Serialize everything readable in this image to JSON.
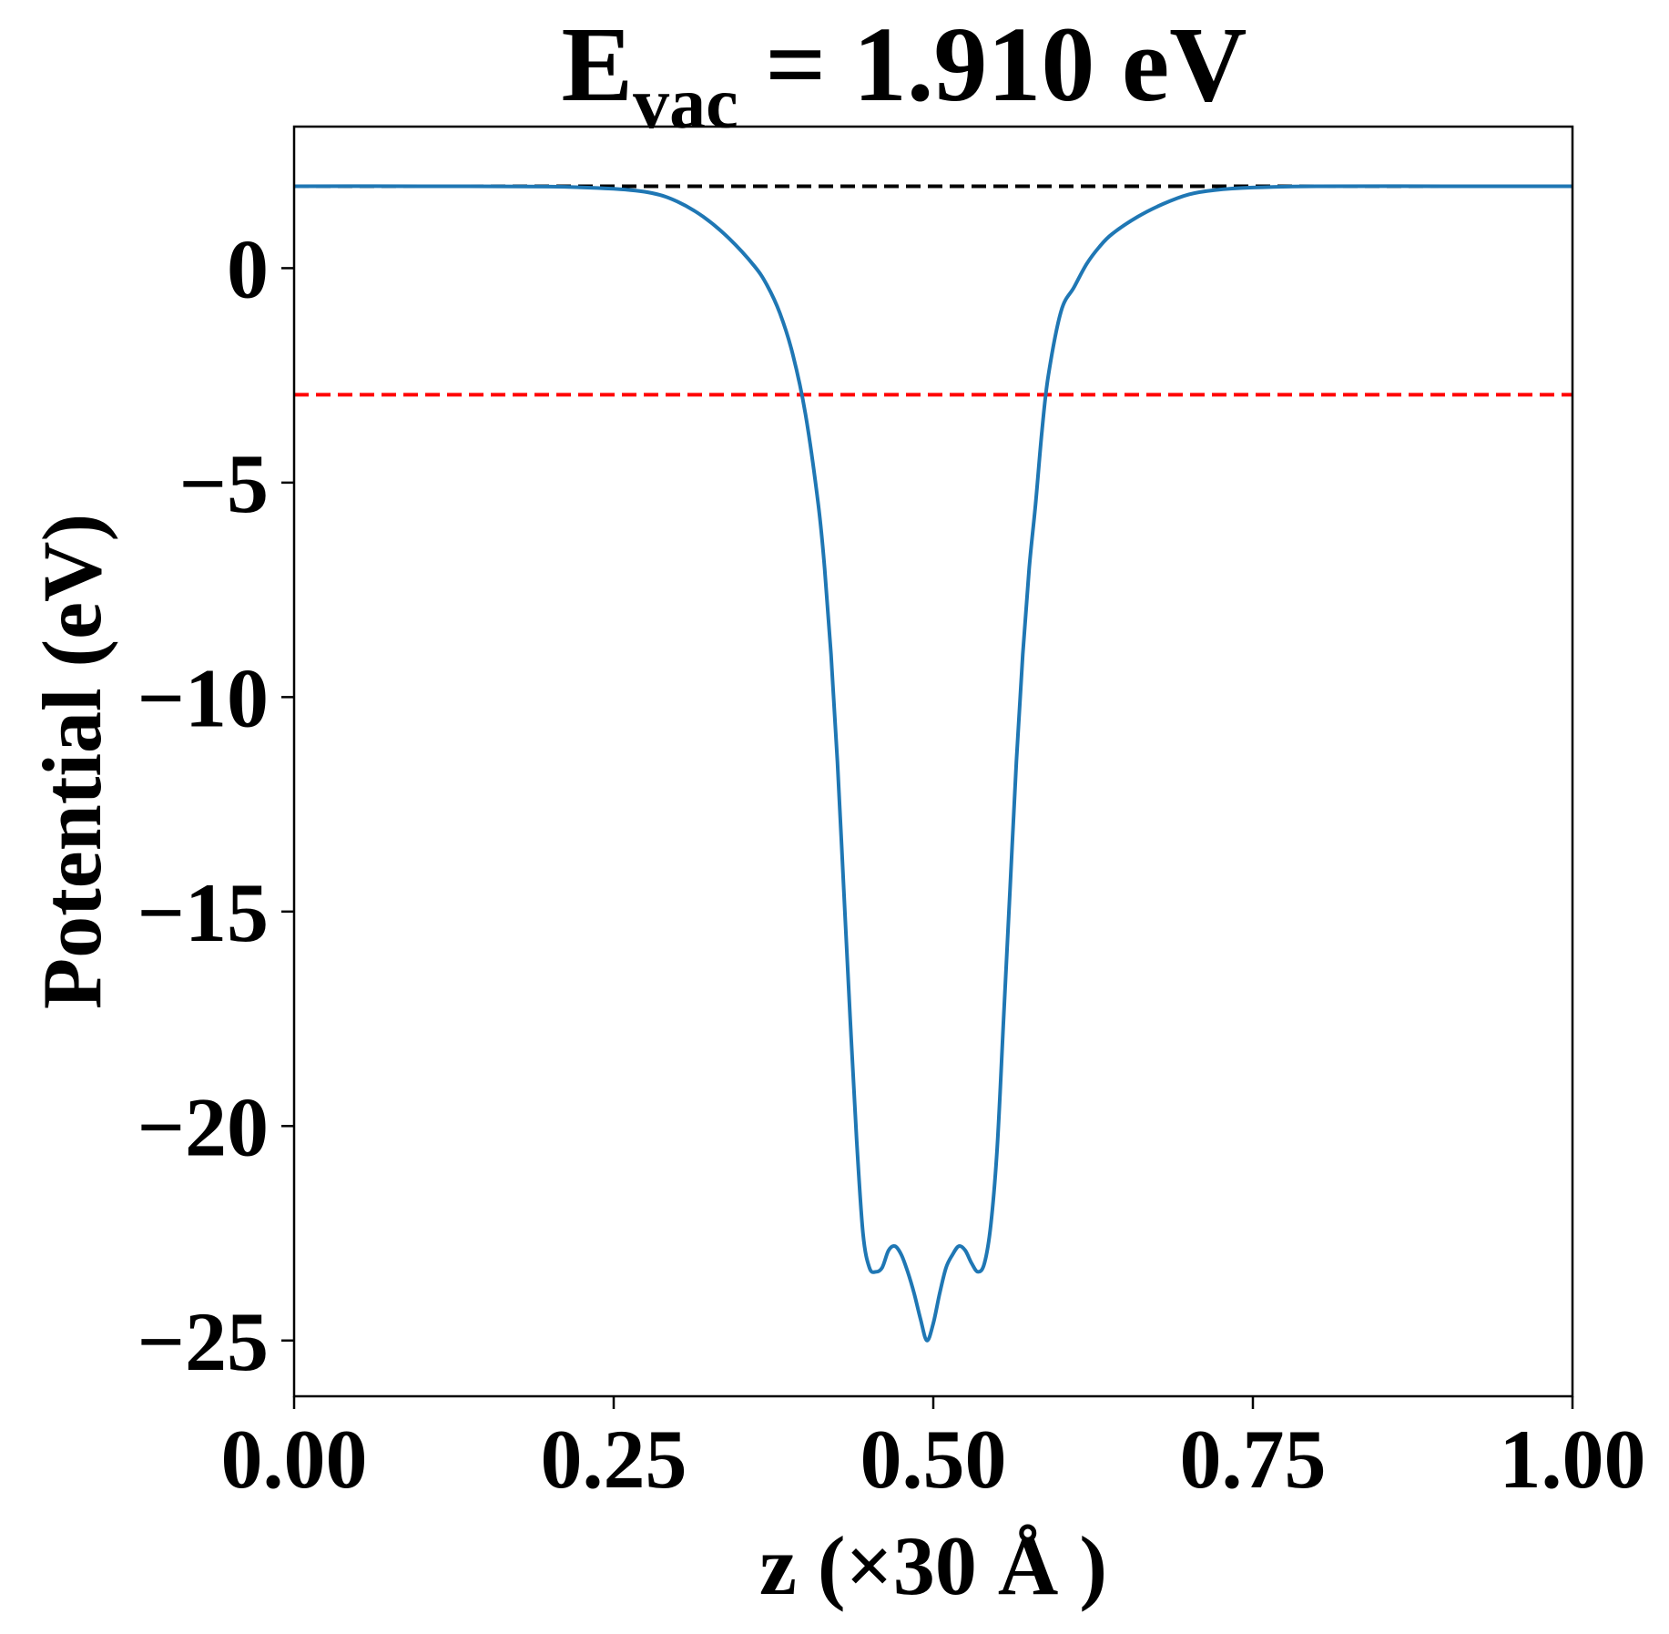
{
  "chart_data": {
    "type": "line",
    "title": {
      "prefix": "E",
      "subscript": "vac",
      "suffix": " = 1.910 eV"
    },
    "xlabel": "z (×30 Å )",
    "ylabel": "Potential (eV)",
    "xlim": [
      0,
      1
    ],
    "ylim": [
      -26.3,
      3.3
    ],
    "xticks": [
      0.0,
      0.25,
      0.5,
      0.75,
      1.0
    ],
    "xtick_labels": [
      "0.00",
      "0.25",
      "0.50",
      "0.75",
      "1.00"
    ],
    "yticks": [
      0,
      -5,
      -10,
      -15,
      -20,
      -25
    ],
    "ytick_labels": [
      "0",
      "−5",
      "−10",
      "−15",
      "−20",
      "−25"
    ],
    "grid": false,
    "reference_lines": [
      {
        "y": 1.91,
        "color": "#000000",
        "style": "dashed"
      },
      {
        "y": -2.95,
        "color": "#ff0000",
        "style": "dashed"
      }
    ],
    "series": [
      {
        "color": "#1f77b4",
        "x": [
          0.0,
          0.1,
          0.2,
          0.25,
          0.28,
          0.3,
          0.32,
          0.34,
          0.36,
          0.37,
          0.38,
          0.39,
          0.4,
          0.41,
          0.415,
          0.42,
          0.425,
          0.43,
          0.435,
          0.44,
          0.445,
          0.45,
          0.455,
          0.46,
          0.465,
          0.47,
          0.475,
          0.48,
          0.485,
          0.49,
          0.495,
          0.5,
          0.505,
          0.51,
          0.515,
          0.52,
          0.525,
          0.53,
          0.535,
          0.54,
          0.545,
          0.55,
          0.555,
          0.56,
          0.565,
          0.57,
          0.575,
          0.58,
          0.585,
          0.59,
          0.6,
          0.61,
          0.62,
          0.63,
          0.64,
          0.66,
          0.68,
          0.7,
          0.72,
          0.75,
          0.8,
          0.9,
          1.0
        ],
        "y": [
          1.91,
          1.91,
          1.9,
          1.85,
          1.75,
          1.55,
          1.2,
          0.7,
          0.05,
          -0.4,
          -1.05,
          -2.0,
          -3.4,
          -5.5,
          -7.0,
          -9.0,
          -11.5,
          -14.5,
          -17.5,
          -20.3,
          -22.5,
          -23.3,
          -23.4,
          -23.3,
          -22.9,
          -22.8,
          -23.0,
          -23.4,
          -23.9,
          -24.5,
          -25.0,
          -24.6,
          -23.9,
          -23.3,
          -23.0,
          -22.8,
          -22.9,
          -23.2,
          -23.4,
          -23.2,
          -22.3,
          -20.5,
          -17.5,
          -14.5,
          -11.5,
          -9.0,
          -7.0,
          -5.5,
          -3.8,
          -2.5,
          -1.0,
          -0.45,
          0.1,
          0.5,
          0.8,
          1.2,
          1.5,
          1.72,
          1.82,
          1.88,
          1.91,
          1.91,
          1.91
        ]
      }
    ]
  }
}
